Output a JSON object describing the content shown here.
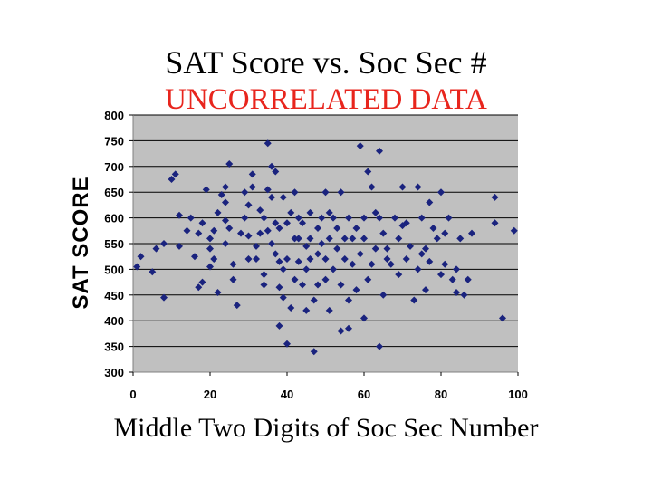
{
  "chart_data": {
    "type": "scatter",
    "title": "SAT Score vs. Soc Sec #",
    "subtitle": "UNCORRELATED DATA",
    "xlabel": "Middle Two Digits of Soc Sec Number",
    "ylabel": "SAT SCORE",
    "xlim": [
      0,
      100
    ],
    "ylim": [
      300,
      800
    ],
    "xticks": [
      "0",
      "20",
      "40",
      "60",
      "80",
      "100"
    ],
    "yticks": [
      "300",
      "350",
      "400",
      "450",
      "500",
      "550",
      "600",
      "650",
      "700",
      "750",
      "800"
    ],
    "grid": "horizontal",
    "legend": "none",
    "colors": {
      "point": "#1a237e",
      "plot_bg": "#c0c0c0",
      "subtitle": "#e8251d",
      "grid": "#000000"
    },
    "points": [
      [
        1,
        505
      ],
      [
        2,
        525
      ],
      [
        5,
        495
      ],
      [
        6,
        540
      ],
      [
        8,
        445
      ],
      [
        8,
        550
      ],
      [
        10,
        675
      ],
      [
        11,
        685
      ],
      [
        12,
        605
      ],
      [
        12,
        545
      ],
      [
        14,
        575
      ],
      [
        15,
        600
      ],
      [
        16,
        525
      ],
      [
        17,
        570
      ],
      [
        17,
        465
      ],
      [
        18,
        590
      ],
      [
        18,
        475
      ],
      [
        19,
        655
      ],
      [
        20,
        560
      ],
      [
        20,
        540
      ],
      [
        20,
        505
      ],
      [
        21,
        520
      ],
      [
        21,
        575
      ],
      [
        22,
        455
      ],
      [
        22,
        610
      ],
      [
        23,
        645
      ],
      [
        24,
        660
      ],
      [
        24,
        630
      ],
      [
        24,
        595
      ],
      [
        24,
        550
      ],
      [
        25,
        705
      ],
      [
        25,
        580
      ],
      [
        26,
        510
      ],
      [
        26,
        480
      ],
      [
        27,
        430
      ],
      [
        28,
        570
      ],
      [
        29,
        600
      ],
      [
        29,
        650
      ],
      [
        30,
        520
      ],
      [
        30,
        565
      ],
      [
        30,
        625
      ],
      [
        31,
        660
      ],
      [
        31,
        685
      ],
      [
        32,
        520
      ],
      [
        32,
        545
      ],
      [
        33,
        615
      ],
      [
        33,
        570
      ],
      [
        34,
        490
      ],
      [
        34,
        470
      ],
      [
        34,
        600
      ],
      [
        35,
        655
      ],
      [
        35,
        575
      ],
      [
        35,
        745
      ],
      [
        36,
        700
      ],
      [
        36,
        640
      ],
      [
        36,
        550
      ],
      [
        37,
        590
      ],
      [
        37,
        530
      ],
      [
        37,
        690
      ],
      [
        38,
        515
      ],
      [
        38,
        465
      ],
      [
        38,
        390
      ],
      [
        38,
        580
      ],
      [
        39,
        640
      ],
      [
        39,
        500
      ],
      [
        39,
        445
      ],
      [
        40,
        355
      ],
      [
        40,
        590
      ],
      [
        40,
        520
      ],
      [
        41,
        425
      ],
      [
        41,
        610
      ],
      [
        42,
        560
      ],
      [
        42,
        480
      ],
      [
        42,
        650
      ],
      [
        43,
        600
      ],
      [
        43,
        560
      ],
      [
        43,
        515
      ],
      [
        44,
        470
      ],
      [
        44,
        590
      ],
      [
        45,
        545
      ],
      [
        45,
        500
      ],
      [
        45,
        420
      ],
      [
        46,
        610
      ],
      [
        46,
        560
      ],
      [
        46,
        520
      ],
      [
        47,
        340
      ],
      [
        47,
        440
      ],
      [
        48,
        580
      ],
      [
        48,
        530
      ],
      [
        48,
        470
      ],
      [
        49,
        600
      ],
      [
        49,
        550
      ],
      [
        50,
        650
      ],
      [
        50,
        520
      ],
      [
        50,
        480
      ],
      [
        51,
        420
      ],
      [
        51,
        560
      ],
      [
        51,
        610
      ],
      [
        52,
        600
      ],
      [
        52,
        500
      ],
      [
        53,
        580
      ],
      [
        53,
        540
      ],
      [
        54,
        380
      ],
      [
        54,
        470
      ],
      [
        54,
        650
      ],
      [
        55,
        520
      ],
      [
        55,
        560
      ],
      [
        56,
        600
      ],
      [
        56,
        440
      ],
      [
        56,
        385
      ],
      [
        57,
        560
      ],
      [
        57,
        510
      ],
      [
        58,
        460
      ],
      [
        58,
        580
      ],
      [
        59,
        740
      ],
      [
        59,
        530
      ],
      [
        60,
        405
      ],
      [
        60,
        560
      ],
      [
        60,
        600
      ],
      [
        61,
        690
      ],
      [
        61,
        480
      ],
      [
        62,
        660
      ],
      [
        62,
        510
      ],
      [
        63,
        540
      ],
      [
        63,
        610
      ],
      [
        64,
        730
      ],
      [
        64,
        350
      ],
      [
        64,
        600
      ],
      [
        65,
        570
      ],
      [
        65,
        450
      ],
      [
        66,
        540
      ],
      [
        66,
        520
      ],
      [
        67,
        510
      ],
      [
        68,
        600
      ],
      [
        69,
        560
      ],
      [
        69,
        490
      ],
      [
        70,
        660
      ],
      [
        70,
        585
      ],
      [
        71,
        520
      ],
      [
        71,
        590
      ],
      [
        72,
        545
      ],
      [
        73,
        440
      ],
      [
        74,
        660
      ],
      [
        74,
        500
      ],
      [
        75,
        530
      ],
      [
        75,
        600
      ],
      [
        76,
        540
      ],
      [
        76,
        460
      ],
      [
        77,
        630
      ],
      [
        77,
        515
      ],
      [
        78,
        580
      ],
      [
        79,
        560
      ],
      [
        80,
        490
      ],
      [
        80,
        650
      ],
      [
        81,
        510
      ],
      [
        81,
        570
      ],
      [
        82,
        600
      ],
      [
        83,
        480
      ],
      [
        84,
        455
      ],
      [
        84,
        500
      ],
      [
        85,
        560
      ],
      [
        86,
        450
      ],
      [
        87,
        480
      ],
      [
        88,
        570
      ],
      [
        94,
        640
      ],
      [
        94,
        590
      ],
      [
        96,
        405
      ],
      [
        99,
        575
      ]
    ]
  }
}
